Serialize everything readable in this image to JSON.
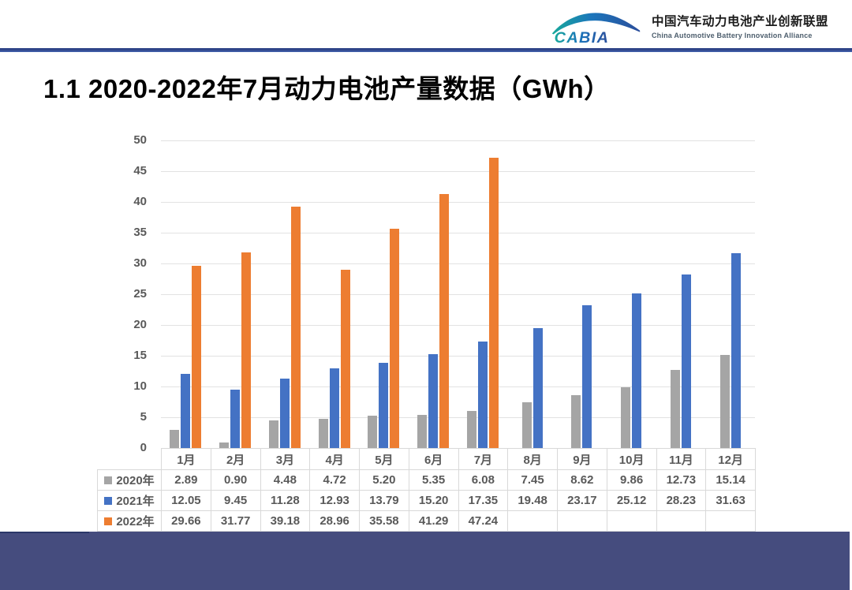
{
  "page": {
    "title": "1.1 2020-2022年7月动力电池产量数据（GWh）"
  },
  "logo": {
    "brand": "CABIA",
    "name_cn": "中国汽车动力电池产业创新联盟",
    "name_en": "China Automotive Battery Innovation Alliance"
  },
  "chart_data": {
    "type": "bar",
    "title": "2020-2022年7月动力电池产量数据",
    "unit": "GWh",
    "categories": [
      "1月",
      "2月",
      "3月",
      "4月",
      "5月",
      "6月",
      "7月",
      "8月",
      "9月",
      "10月",
      "11月",
      "12月"
    ],
    "series": [
      {
        "name": "2020年",
        "color": "#A5A5A5",
        "values": [
          2.89,
          0.9,
          4.48,
          4.72,
          5.2,
          5.35,
          6.08,
          7.45,
          8.62,
          9.86,
          12.73,
          15.14
        ]
      },
      {
        "name": "2021年",
        "color": "#4472C4",
        "values": [
          12.05,
          9.45,
          11.28,
          12.93,
          13.79,
          15.2,
          17.35,
          19.48,
          23.17,
          25.12,
          28.23,
          31.63
        ]
      },
      {
        "name": "2022年",
        "color": "#ED7D31",
        "values": [
          29.66,
          31.77,
          39.18,
          28.96,
          35.58,
          41.29,
          47.24,
          null,
          null,
          null,
          null,
          null
        ]
      }
    ],
    "ylim": [
      0,
      50
    ],
    "ytick_step": 5,
    "grid": true,
    "value_decimals": 2,
    "legend_position": "table-row-headers"
  },
  "colors": {
    "grid_line": "#E2E2E2",
    "axis_text": "#595959",
    "table_border": "#D9D9D9",
    "header_rule_top": "#2E4387",
    "header_rule_bottom": "#4565B0",
    "footer_bar": "#454C7E",
    "bar_2020": "#A5A5A5",
    "bar_2021": "#4472C4",
    "bar_2022": "#ED7D31"
  }
}
